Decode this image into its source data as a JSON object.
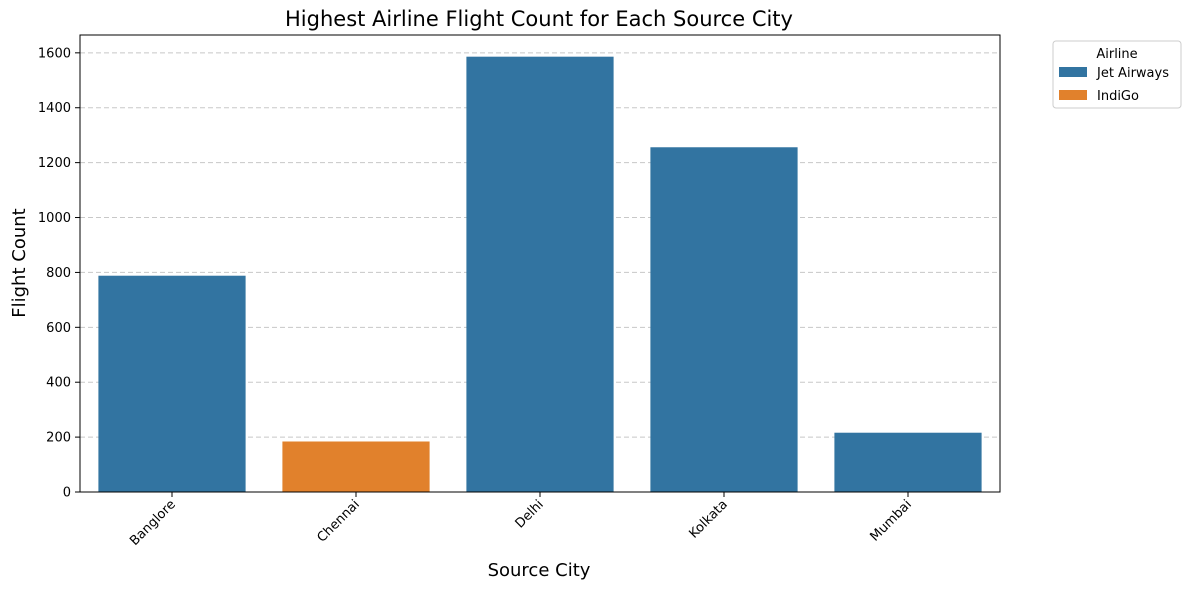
{
  "chart_data": {
    "type": "bar",
    "title": "Highest Airline Flight Count for Each Source City",
    "xlabel": "Source City",
    "ylabel": "Flight Count",
    "categories": [
      "Banglore",
      "Chennai",
      "Delhi",
      "Kolkata",
      "Mumbai"
    ],
    "values": [
      788,
      184,
      1586,
      1256,
      216
    ],
    "bar_airline": [
      "Jet Airways",
      "IndiGo",
      "Jet Airways",
      "Jet Airways",
      "Jet Airways"
    ],
    "yticks": [
      0,
      200,
      400,
      600,
      800,
      1000,
      1200,
      1400,
      1600
    ],
    "ylim": [
      0,
      1665
    ],
    "grid": "y-dashed",
    "legend": {
      "title": "Airline",
      "placement": "outside-top-right",
      "entries": [
        {
          "name": "Jet Airways",
          "color": "#3274a1"
        },
        {
          "name": "IndiGo",
          "color": "#e1812c"
        }
      ]
    }
  }
}
